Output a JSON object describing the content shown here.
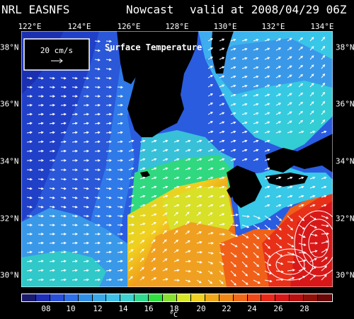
{
  "header": {
    "model": "NRL EASNFS",
    "product": "Nowcast",
    "valid": "valid at 2008/04/29 06Z"
  },
  "map": {
    "lon_labels": [
      "122°E",
      "124°E",
      "126°E",
      "128°E",
      "130°E",
      "132°E",
      "134°E"
    ],
    "lat_labels": [
      "38°N",
      "36°N",
      "34°N",
      "32°N",
      "30°N"
    ],
    "field_title": "Surface Temperature",
    "scale_label": "20 cm/s"
  },
  "colorbar": {
    "ticks": [
      "08",
      "10",
      "12",
      "14",
      "16",
      "18",
      "20",
      "22",
      "24",
      "26",
      "28"
    ],
    "unit": "°C",
    "colors": [
      "#1a1a6e",
      "#1f2fb8",
      "#2a4fd8",
      "#2f6fe8",
      "#2f8fe8",
      "#38a8e8",
      "#3fc0e8",
      "#3fd0d0",
      "#30d890",
      "#30e040",
      "#88e030",
      "#d8e828",
      "#f0d020",
      "#f0a818",
      "#f08818",
      "#f06818",
      "#f04818",
      "#e82818",
      "#d81818",
      "#b81010",
      "#901008",
      "#6a0808"
    ]
  }
}
